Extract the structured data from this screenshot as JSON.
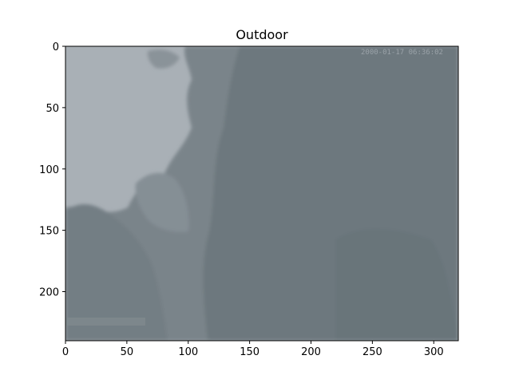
{
  "figure": {
    "title": "Outdoor",
    "timestamp": "2000-01-17 06:36:02"
  },
  "chart_data": {
    "type": "image",
    "title": "Outdoor",
    "xlim": [
      0,
      320
    ],
    "ylim": [
      240,
      0
    ],
    "x_ticks": [
      0,
      50,
      100,
      150,
      200,
      250,
      300
    ],
    "y_ticks": [
      0,
      50,
      100,
      150,
      200
    ],
    "x_tick_labels": [
      "0",
      "50",
      "100",
      "150",
      "200",
      "250",
      "300"
    ],
    "y_tick_labels": [
      "0",
      "50",
      "100",
      "150",
      "200"
    ],
    "grid": false,
    "colors": {
      "sky": "#a9b0b6",
      "foliage_dark": "#6f7a80",
      "foliage_mid": "#7e888e",
      "foliage_light": "#8e979c"
    }
  }
}
